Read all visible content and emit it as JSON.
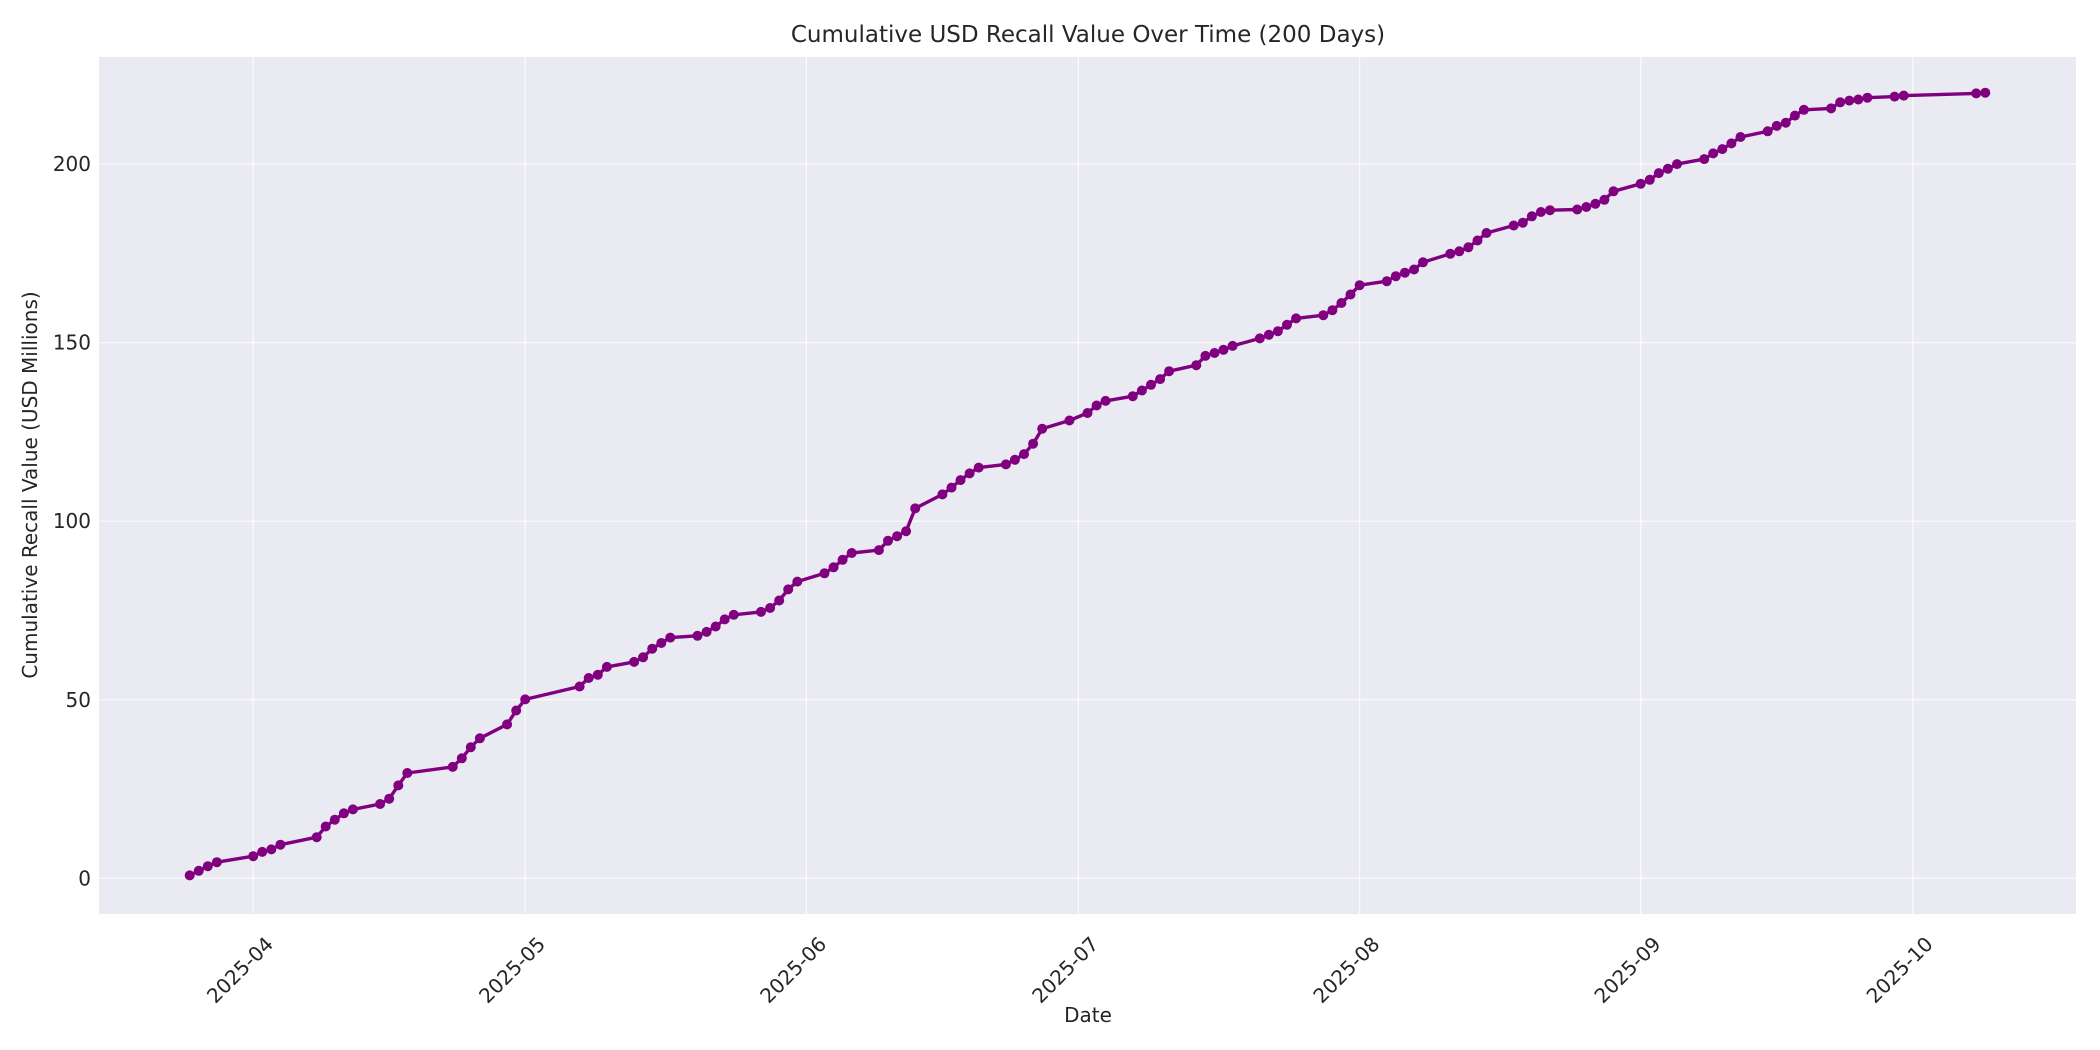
{
  "chart_data": {
    "type": "line",
    "title": "Cumulative USD Recall Value Over Time (200 Days)",
    "xlabel": "Date",
    "ylabel": "Cumulative Recall Value (USD Millions)",
    "xlim": [
      "2025-03-15",
      "2025-10-19"
    ],
    "ylim": [
      -10,
      230
    ],
    "x_ticks": [
      "2025-04-01",
      "2025-05-01",
      "2025-06-01",
      "2025-07-01",
      "2025-08-01",
      "2025-09-01",
      "2025-10-01"
    ],
    "x_tick_labels": [
      "2025-04",
      "2025-05",
      "2025-06",
      "2025-07",
      "2025-08",
      "2025-09",
      "2025-10"
    ],
    "y_ticks": [
      0,
      50,
      100,
      150,
      200
    ],
    "grid": true,
    "background": "#eaeaf2",
    "line_color": "#800080",
    "series": [
      {
        "points": [
          [
            "2025-03-25",
            0.8
          ],
          [
            "2025-03-26",
            2.1
          ],
          [
            "2025-03-27",
            3.4
          ],
          [
            "2025-03-28",
            4.5
          ],
          [
            "2025-04-01",
            6.2
          ],
          [
            "2025-04-02",
            7.4
          ],
          [
            "2025-04-03",
            8.1
          ],
          [
            "2025-04-04",
            9.4
          ],
          [
            "2025-04-08",
            11.5
          ],
          [
            "2025-04-09",
            14.5
          ],
          [
            "2025-04-10",
            16.4
          ],
          [
            "2025-04-11",
            18.2
          ],
          [
            "2025-04-12",
            19.3
          ],
          [
            "2025-04-15",
            20.8
          ],
          [
            "2025-04-16",
            22.3
          ],
          [
            "2025-04-17",
            26.0
          ],
          [
            "2025-04-18",
            29.5
          ],
          [
            "2025-04-23",
            31.2
          ],
          [
            "2025-04-24",
            33.6
          ],
          [
            "2025-04-25",
            36.7
          ],
          [
            "2025-04-26",
            39.2
          ],
          [
            "2025-04-29",
            43.1
          ],
          [
            "2025-04-30",
            47.0
          ],
          [
            "2025-05-01",
            50.1
          ],
          [
            "2025-05-07",
            53.7
          ],
          [
            "2025-05-08",
            56.1
          ],
          [
            "2025-05-09",
            57.0
          ],
          [
            "2025-05-10",
            59.2
          ],
          [
            "2025-05-13",
            60.6
          ],
          [
            "2025-05-14",
            61.9
          ],
          [
            "2025-05-15",
            64.3
          ],
          [
            "2025-05-16",
            65.9
          ],
          [
            "2025-05-17",
            67.4
          ],
          [
            "2025-05-20",
            67.9
          ],
          [
            "2025-05-21",
            69.0
          ],
          [
            "2025-05-22",
            70.5
          ],
          [
            "2025-05-23",
            72.5
          ],
          [
            "2025-05-24",
            73.8
          ],
          [
            "2025-05-27",
            74.6
          ],
          [
            "2025-05-28",
            75.7
          ],
          [
            "2025-05-29",
            77.8
          ],
          [
            "2025-05-30",
            80.9
          ],
          [
            "2025-05-31",
            83.1
          ],
          [
            "2025-06-03",
            85.4
          ],
          [
            "2025-06-04",
            87.1
          ],
          [
            "2025-06-05",
            89.2
          ],
          [
            "2025-06-06",
            91.1
          ],
          [
            "2025-06-09",
            91.9
          ],
          [
            "2025-06-10",
            94.5
          ],
          [
            "2025-06-11",
            95.8
          ],
          [
            "2025-06-12",
            97.2
          ],
          [
            "2025-06-13",
            103.6
          ],
          [
            "2025-06-16",
            107.5
          ],
          [
            "2025-06-17",
            109.4
          ],
          [
            "2025-06-18",
            111.5
          ],
          [
            "2025-06-19",
            113.4
          ],
          [
            "2025-06-20",
            115.0
          ],
          [
            "2025-06-23",
            115.9
          ],
          [
            "2025-06-24",
            117.2
          ],
          [
            "2025-06-25",
            118.8
          ],
          [
            "2025-06-26",
            121.7
          ],
          [
            "2025-06-27",
            125.9
          ],
          [
            "2025-06-30",
            128.2
          ],
          [
            "2025-07-02",
            130.3
          ],
          [
            "2025-07-03",
            132.4
          ],
          [
            "2025-07-04",
            133.7
          ],
          [
            "2025-07-07",
            135.0
          ],
          [
            "2025-07-08",
            136.6
          ],
          [
            "2025-07-09",
            138.2
          ],
          [
            "2025-07-10",
            139.8
          ],
          [
            "2025-07-11",
            142.0
          ],
          [
            "2025-07-14",
            143.7
          ],
          [
            "2025-07-15",
            146.3
          ],
          [
            "2025-07-16",
            147.1
          ],
          [
            "2025-07-17",
            148.0
          ],
          [
            "2025-07-18",
            149.1
          ],
          [
            "2025-07-21",
            151.2
          ],
          [
            "2025-07-22",
            152.2
          ],
          [
            "2025-07-23",
            153.2
          ],
          [
            "2025-07-24",
            155.0
          ],
          [
            "2025-07-25",
            156.8
          ],
          [
            "2025-07-28",
            157.7
          ],
          [
            "2025-07-29",
            159.1
          ],
          [
            "2025-07-30",
            161.1
          ],
          [
            "2025-07-31",
            163.5
          ],
          [
            "2025-08-01",
            166.1
          ],
          [
            "2025-08-04",
            167.2
          ],
          [
            "2025-08-05",
            168.6
          ],
          [
            "2025-08-06",
            169.6
          ],
          [
            "2025-08-07",
            170.5
          ],
          [
            "2025-08-08",
            172.5
          ],
          [
            "2025-08-11",
            174.9
          ],
          [
            "2025-08-12",
            175.6
          ],
          [
            "2025-08-13",
            176.7
          ],
          [
            "2025-08-14",
            178.6
          ],
          [
            "2025-08-15",
            180.7
          ],
          [
            "2025-08-18",
            182.8
          ],
          [
            "2025-08-19",
            183.6
          ],
          [
            "2025-08-20",
            185.4
          ],
          [
            "2025-08-21",
            186.6
          ],
          [
            "2025-08-22",
            187.1
          ],
          [
            "2025-08-25",
            187.3
          ],
          [
            "2025-08-26",
            188.0
          ],
          [
            "2025-08-27",
            188.9
          ],
          [
            "2025-08-28",
            190.0
          ],
          [
            "2025-08-29",
            192.4
          ],
          [
            "2025-09-01",
            194.5
          ],
          [
            "2025-09-02",
            195.6
          ],
          [
            "2025-09-03",
            197.5
          ],
          [
            "2025-09-04",
            198.7
          ],
          [
            "2025-09-05",
            200.0
          ],
          [
            "2025-09-08",
            201.4
          ],
          [
            "2025-09-09",
            203.0
          ],
          [
            "2025-09-10",
            204.2
          ],
          [
            "2025-09-11",
            205.8
          ],
          [
            "2025-09-12",
            207.6
          ],
          [
            "2025-09-15",
            209.2
          ],
          [
            "2025-09-16",
            210.7
          ],
          [
            "2025-09-17",
            211.6
          ],
          [
            "2025-09-18",
            213.6
          ],
          [
            "2025-09-19",
            215.2
          ],
          [
            "2025-09-22",
            215.6
          ],
          [
            "2025-09-23",
            217.3
          ],
          [
            "2025-09-24",
            217.8
          ],
          [
            "2025-09-25",
            218.1
          ],
          [
            "2025-09-26",
            218.6
          ],
          [
            "2025-09-29",
            218.9
          ],
          [
            "2025-09-30",
            219.2
          ],
          [
            "2025-10-08",
            219.8
          ],
          [
            "2025-10-09",
            220.0
          ]
        ]
      }
    ]
  }
}
